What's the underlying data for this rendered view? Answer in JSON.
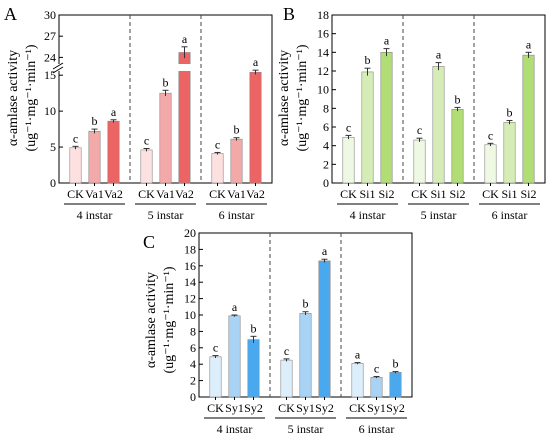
{
  "chart_data": [
    {
      "panel_label": "A",
      "type": "bar",
      "ylabel_line1": "α-amlase activity",
      "ylabel_line2": "(ug⁻¹·mg⁻¹·min⁻¹)",
      "axis_break": {
        "lower": [
          0,
          16
        ],
        "upper": [
          22.5,
          30
        ]
      },
      "ticks_lower": [
        0,
        5,
        10,
        15
      ],
      "ticks_upper": [
        24,
        27,
        30
      ],
      "groups": [
        {
          "name": "4 instar",
          "categories": [
            "CK",
            "Va1",
            "Va2"
          ],
          "values": [
            4.9,
            7.2,
            8.6
          ],
          "errors": [
            0.2,
            0.3,
            0.2
          ],
          "letters": [
            "c",
            "b",
            "a"
          ]
        },
        {
          "name": "5 instar",
          "categories": [
            "CK",
            "Va1",
            "Va2"
          ],
          "values": [
            4.6,
            12.5,
            24.7
          ],
          "errors": [
            0.2,
            0.4,
            0.8
          ],
          "letters": [
            "c",
            "b",
            "a"
          ]
        },
        {
          "name": "6 instar",
          "categories": [
            "CK",
            "Va1",
            "Va2"
          ],
          "values": [
            4.1,
            6.1,
            15.4
          ],
          "errors": [
            0.15,
            0.2,
            0.3
          ],
          "letters": [
            "c",
            "b",
            "a"
          ]
        }
      ],
      "colors": [
        "#fde0e0",
        "#f4a9a9",
        "#ec6464"
      ]
    },
    {
      "panel_label": "B",
      "type": "bar",
      "ylabel_line1": "α-amlase activity",
      "ylabel_line2": "(ug⁻¹·mg⁻¹·min⁻¹)",
      "ylim": [
        0,
        18
      ],
      "ticks": [
        0,
        2,
        4,
        6,
        8,
        10,
        12,
        14,
        16,
        18
      ],
      "groups": [
        {
          "name": "4 instar",
          "categories": [
            "CK",
            "Si1",
            "Si2"
          ],
          "values": [
            4.9,
            11.9,
            14.0
          ],
          "errors": [
            0.2,
            0.4,
            0.4
          ],
          "letters": [
            "c",
            "b",
            "a"
          ]
        },
        {
          "name": "5 instar",
          "categories": [
            "CK",
            "Si1",
            "Si2"
          ],
          "values": [
            4.6,
            12.5,
            7.9
          ],
          "errors": [
            0.2,
            0.4,
            0.2
          ],
          "letters": [
            "c",
            "a",
            "b"
          ]
        },
        {
          "name": "6 instar",
          "categories": [
            "CK",
            "Si1",
            "Si2"
          ],
          "values": [
            4.1,
            6.5,
            13.7
          ],
          "errors": [
            0.15,
            0.2,
            0.3
          ],
          "letters": [
            "c",
            "b",
            "a"
          ]
        }
      ],
      "colors": [
        "#eef8e2",
        "#d5ecb6",
        "#b0dd74"
      ]
    },
    {
      "panel_label": "C",
      "type": "bar",
      "ylabel_line1": "α-amlase activity",
      "ylabel_line2": "(ug⁻¹·mg⁻¹·min⁻¹)",
      "ylim": [
        0,
        20
      ],
      "ticks": [
        0,
        2,
        4,
        6,
        8,
        10,
        12,
        14,
        16,
        18,
        20
      ],
      "groups": [
        {
          "name": "4 instar",
          "categories": [
            "CK",
            "Sy1",
            "Sy2"
          ],
          "values": [
            4.9,
            9.9,
            7.0
          ],
          "errors": [
            0.15,
            0.1,
            0.4
          ],
          "letters": [
            "c",
            "a",
            "b"
          ]
        },
        {
          "name": "5 instar",
          "categories": [
            "CK",
            "Sy1",
            "Sy2"
          ],
          "values": [
            4.5,
            10.2,
            16.6
          ],
          "errors": [
            0.15,
            0.2,
            0.2
          ],
          "letters": [
            "c",
            "b",
            "a"
          ]
        },
        {
          "name": "6 instar",
          "categories": [
            "CK",
            "Sy1",
            "Sy2"
          ],
          "values": [
            4.1,
            2.4,
            3.0
          ],
          "errors": [
            0.1,
            0.1,
            0.1
          ],
          "letters": [
            "a",
            "c",
            "b"
          ]
        }
      ],
      "colors": [
        "#ddeefb",
        "#a9d3f4",
        "#4aa8ee"
      ]
    }
  ]
}
